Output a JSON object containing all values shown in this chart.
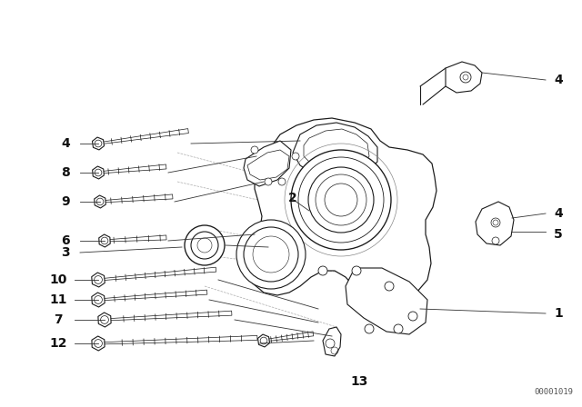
{
  "bg_color": "#ffffff",
  "fig_width": 6.4,
  "fig_height": 4.48,
  "dpi": 100,
  "watermark": "00001019",
  "font_size_labels": 10,
  "font_size_watermark": 6.5,
  "lc": "#1a1a1a",
  "lw": 0.8
}
